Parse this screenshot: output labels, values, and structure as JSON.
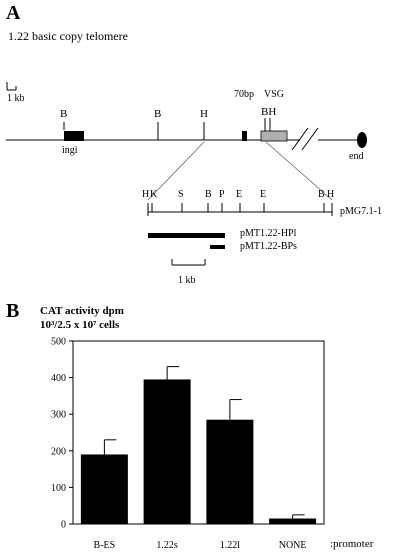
{
  "panel_a": {
    "letter": "A",
    "title": "1.22 basic copy telomere",
    "scale_label": "1 kb",
    "map_labels": {
      "b1": "B",
      "b2": "B",
      "h1": "H",
      "seventy": "70bp",
      "vsg": "VSG",
      "bh": "BH",
      "ingi": "ingi",
      "end": "end"
    },
    "inset_sites": [
      "H",
      "K",
      "S",
      "B",
      "P",
      "E",
      "E",
      "B",
      "H"
    ],
    "clone_main": "pMG7.1-1",
    "clone_hpl": "pMT1.22-HPl",
    "clone_bps": "pMT1.22-BPs",
    "inset_scale_label": "1 kb"
  },
  "panel_b": {
    "letter": "B",
    "ylabel_line1": "CAT activity dpm",
    "ylabel_line2": "10³/2.5 x 10⁷ cells",
    "x_suffix": ":promoter"
  },
  "chart_data": {
    "type": "bar",
    "categories": [
      "B-ES",
      "1.22s",
      "1.22l",
      "NONE"
    ],
    "values": [
      190,
      395,
      285,
      15
    ],
    "errors": [
      40,
      35,
      55,
      10
    ],
    "ylabel": "CAT activity dpm 10³/2.5 x 10⁷ cells",
    "ylim": [
      0,
      500
    ],
    "yticks": [
      0,
      100,
      200,
      300,
      400,
      500
    ],
    "grid": false
  }
}
